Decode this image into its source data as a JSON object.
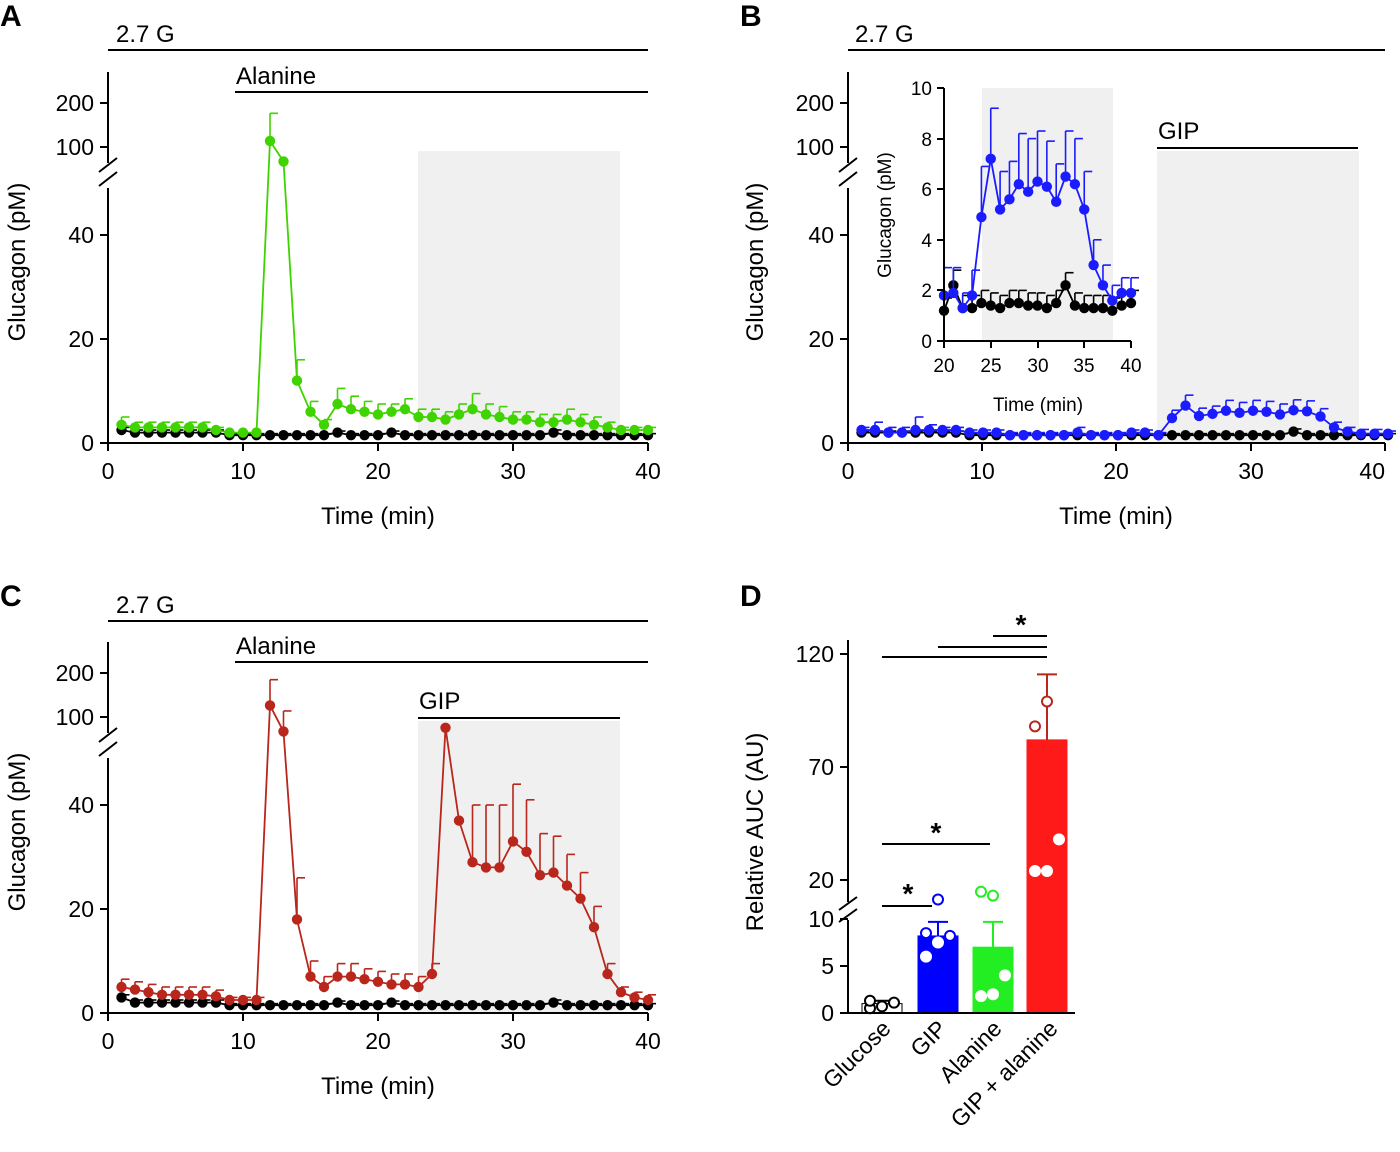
{
  "chart_data": [
    {
      "panel": "A",
      "type": "line",
      "title": "",
      "xlabel": "Time (min)",
      "ylabel": "Glucagon (pM)",
      "xlim": [
        0,
        40
      ],
      "xticks": [
        "0",
        "10",
        "20",
        "30",
        "40"
      ],
      "ylim_lower": [
        0,
        50
      ],
      "yticks_lower": [
        "0",
        "20",
        "40"
      ],
      "yticks_upper": [
        "100",
        "200"
      ],
      "condition_bars": [
        {
          "label": "2.7 G",
          "start": 0,
          "end": 40
        },
        {
          "label": "Alanine",
          "start": 9,
          "end": 40
        }
      ],
      "shaded_region": [
        23,
        38
      ],
      "series": [
        {
          "name": "Alanine",
          "color": "#3fd300",
          "x": [
            1,
            2,
            3,
            4,
            5,
            6,
            7,
            8,
            9,
            10,
            11,
            12,
            13,
            14,
            15,
            16,
            17,
            18,
            19,
            20,
            21,
            22,
            23,
            24,
            25,
            26,
            27,
            28,
            29,
            30,
            31,
            32,
            33,
            34,
            35,
            36,
            37,
            38,
            39,
            40
          ],
          "y": [
            3.5,
            3,
            3,
            3,
            3,
            3,
            3,
            2.5,
            2,
            2,
            2,
            110,
            80,
            12,
            6,
            3.5,
            7.5,
            6.5,
            6,
            5.5,
            6,
            6.5,
            5,
            5,
            4.5,
            5.5,
            6.5,
            5.5,
            5,
            4.5,
            4.5,
            4,
            4,
            4.5,
            4,
            3.5,
            3,
            2.5,
            2.5,
            2.5
          ],
          "err": [
            1.5,
            1,
            1,
            1,
            1,
            1,
            1,
            0.5,
            0,
            0,
            0,
            60,
            0,
            4,
            2,
            1,
            3,
            2.5,
            2,
            2,
            1.5,
            2,
            1.5,
            1.5,
            1.5,
            2,
            3,
            2,
            2,
            1.5,
            1.5,
            1.5,
            1.5,
            2,
            1.5,
            1.5,
            1,
            0.5,
            0.5,
            0.5
          ]
        },
        {
          "name": "Glucose",
          "color": "#000000",
          "x": [
            1,
            2,
            3,
            4,
            5,
            6,
            7,
            8,
            9,
            10,
            11,
            12,
            13,
            14,
            15,
            16,
            17,
            18,
            19,
            20,
            21,
            22,
            23,
            24,
            25,
            26,
            27,
            28,
            29,
            30,
            31,
            32,
            33,
            34,
            35,
            36,
            37,
            38,
            39,
            40
          ],
          "y": [
            2.5,
            2,
            2,
            2,
            2,
            2,
            2,
            2,
            1.5,
            1.5,
            1.5,
            1.5,
            1.5,
            1.5,
            1.5,
            1.5,
            2,
            1.5,
            1.5,
            1.5,
            2,
            1.5,
            1.5,
            1.5,
            1.5,
            1.5,
            1.5,
            1.5,
            1.5,
            1.5,
            1.5,
            1.5,
            2,
            1.5,
            1.5,
            1.5,
            1.5,
            1.5,
            1.5,
            1.5
          ],
          "err": [
            0.5,
            0.5,
            0.5,
            0.5,
            0.5,
            0.5,
            0.5,
            0.5,
            0.3,
            0.3,
            0.3,
            0.3,
            0.3,
            0.3,
            0.3,
            0.3,
            0.3,
            0.3,
            0.3,
            0.3,
            0.3,
            0.3,
            0.3,
            0.3,
            0.3,
            0.3,
            0.3,
            0.3,
            0.3,
            0.3,
            0.3,
            0.3,
            0.5,
            0.3,
            0.3,
            0.3,
            0.3,
            0.3,
            0.3,
            0.3
          ]
        }
      ]
    },
    {
      "panel": "B",
      "type": "line",
      "title": "",
      "xlabel": "Time (min)",
      "ylabel": "Glucagon (pM)",
      "xlim": [
        0,
        40
      ],
      "xticks": [
        "0",
        "10",
        "20",
        "30",
        "40"
      ],
      "ylim_lower": [
        0,
        50
      ],
      "yticks_lower": [
        "0",
        "20",
        "40"
      ],
      "yticks_upper": [
        "100",
        "200"
      ],
      "condition_bars": [
        {
          "label": "2.7 G",
          "start": 0,
          "end": 40
        },
        {
          "label": "GIP",
          "start": 23,
          "end": 38
        }
      ],
      "shaded_region": [
        23,
        38
      ],
      "series": [
        {
          "name": "GIP",
          "color": "#1b1bff",
          "x": [
            1,
            2,
            3,
            4,
            5,
            6,
            7,
            8,
            9,
            10,
            11,
            12,
            13,
            14,
            15,
            16,
            17,
            18,
            19,
            20,
            21,
            22,
            23,
            24,
            25,
            26,
            27,
            28,
            29,
            30,
            31,
            32,
            33,
            34,
            35,
            36,
            37,
            38,
            39,
            40
          ],
          "y": [
            2.5,
            2.5,
            2,
            2,
            2.5,
            2.5,
            2.5,
            2.5,
            2,
            2,
            2,
            1.5,
            1.5,
            1.5,
            1.5,
            1.5,
            2,
            1.5,
            1.5,
            1.5,
            2,
            2,
            1.5,
            4.8,
            7.2,
            5.2,
            5.6,
            6.2,
            5.8,
            6.2,
            6,
            5.5,
            6.3,
            6.1,
            5.1,
            3,
            2.2,
            1.8,
            1.8,
            1.8
          ],
          "err": [
            0.5,
            1.5,
            1,
            1,
            2.5,
            1,
            0.5,
            0.5,
            0.5,
            0.5,
            0.5,
            0.5,
            0.5,
            0.5,
            0.5,
            0.5,
            1,
            0.5,
            0.5,
            0.5,
            0.5,
            0.5,
            0.5,
            1.5,
            2,
            1.5,
            1.5,
            2,
            2,
            2,
            2,
            2,
            2,
            2,
            1.5,
            1,
            0.8,
            0.8,
            0.8,
            0.5
          ]
        },
        {
          "name": "Glucose",
          "color": "#000000",
          "x": [
            1,
            2,
            3,
            4,
            5,
            6,
            7,
            8,
            9,
            10,
            11,
            12,
            13,
            14,
            15,
            16,
            17,
            18,
            19,
            20,
            21,
            22,
            23,
            24,
            25,
            26,
            27,
            28,
            29,
            30,
            31,
            32,
            33,
            34,
            35,
            36,
            37,
            38,
            39,
            40
          ],
          "y": [
            2,
            2,
            2,
            2,
            2,
            2,
            2,
            2,
            1.5,
            1.5,
            1.5,
            1.5,
            1.5,
            1.5,
            1.5,
            1.5,
            1.5,
            1.5,
            1.5,
            1.5,
            1.5,
            1.5,
            1.5,
            1.5,
            1.5,
            1.5,
            1.5,
            1.5,
            1.5,
            1.5,
            1.5,
            1.5,
            2.2,
            1.5,
            1.5,
            1.5,
            1.5,
            1.5,
            1.5,
            1.5
          ],
          "err": [
            0.3,
            0.3,
            0.3,
            0.3,
            0.3,
            0.3,
            0.3,
            0.3,
            0.3,
            0.3,
            0.3,
            0.3,
            0.3,
            0.3,
            0.3,
            0.3,
            0.3,
            0.3,
            0.3,
            0.3,
            0.3,
            0.3,
            0.3,
            0.3,
            0.3,
            0.3,
            0.3,
            0.3,
            0.3,
            0.3,
            0.3,
            0.3,
            0.5,
            0.3,
            0.3,
            0.3,
            0.3,
            0.3,
            0.3,
            0.3
          ]
        }
      ],
      "inset": {
        "xlabel": "Time (min)",
        "ylabel": "Glucagon (pM)",
        "xlim": [
          20,
          40
        ],
        "ylim": [
          0,
          10
        ],
        "xticks": [
          "20",
          "25",
          "30",
          "35",
          "40"
        ],
        "yticks": [
          "0",
          "2",
          "4",
          "6",
          "8",
          "10"
        ],
        "shaded_region": [
          24,
          38
        ],
        "series": [
          {
            "name": "GIP",
            "color": "#1b1bff",
            "x": [
              20,
              21,
              22,
              23,
              24,
              25,
              26,
              27,
              28,
              29,
              30,
              31,
              32,
              33,
              34,
              35,
              36,
              37,
              38,
              39,
              40
            ],
            "y": [
              1.8,
              1.9,
              1.3,
              1.8,
              4.9,
              7.2,
              5.2,
              5.6,
              6.2,
              5.9,
              6.3,
              6.1,
              5.5,
              6.5,
              6.2,
              5.2,
              3.0,
              2.2,
              1.6,
              1.9,
              1.9
            ],
            "err": [
              1.1,
              1,
              0.6,
              1,
              2,
              2,
              1.5,
              1.5,
              2,
              2.1,
              2,
              1.8,
              1.5,
              1.8,
              1.8,
              1.5,
              1,
              0.8,
              0.6,
              0.6,
              0.6
            ]
          },
          {
            "name": "Glucose",
            "color": "#000000",
            "x": [
              20,
              21,
              22,
              23,
              24,
              25,
              26,
              27,
              28,
              29,
              30,
              31,
              32,
              33,
              34,
              35,
              36,
              37,
              38,
              39,
              40
            ],
            "y": [
              1.2,
              2.2,
              1.3,
              1.3,
              1.5,
              1.4,
              1.3,
              1.5,
              1.5,
              1.4,
              1.4,
              1.3,
              1.5,
              2.2,
              1.4,
              1.3,
              1.3,
              1.3,
              1.2,
              1.4,
              1.5
            ],
            "err": [
              0.5,
              0.6,
              0.5,
              0.5,
              0.5,
              0.5,
              0.5,
              0.5,
              0.5,
              0.5,
              0.5,
              0.5,
              0.5,
              0.5,
              0.5,
              0.5,
              0.5,
              0.5,
              0.5,
              0.5,
              0.5
            ]
          }
        ]
      }
    },
    {
      "panel": "C",
      "type": "line",
      "title": "",
      "xlabel": "Time (min)",
      "ylabel": "Glucagon (pM)",
      "xlim": [
        0,
        40
      ],
      "xticks": [
        "0",
        "10",
        "20",
        "30",
        "40"
      ],
      "ylim_lower": [
        0,
        50
      ],
      "yticks_lower": [
        "0",
        "20",
        "40"
      ],
      "yticks_upper": [
        "100",
        "200"
      ],
      "condition_bars": [
        {
          "label": "2.7 G",
          "start": 0,
          "end": 40
        },
        {
          "label": "Alanine",
          "start": 9,
          "end": 40
        },
        {
          "label": "GIP",
          "start": 23,
          "end": 38
        }
      ],
      "shaded_region": [
        23,
        38
      ],
      "series": [
        {
          "name": "GIP + alanine",
          "color": "#b8261c",
          "x": [
            1,
            2,
            3,
            4,
            5,
            6,
            7,
            8,
            9,
            10,
            11,
            12,
            13,
            14,
            15,
            16,
            17,
            18,
            19,
            20,
            21,
            22,
            23,
            24,
            25,
            26,
            27,
            28,
            29,
            30,
            31,
            32,
            33,
            34,
            35,
            36,
            37,
            38,
            39,
            40
          ],
          "y": [
            5,
            4.5,
            4,
            3.5,
            3.5,
            3.5,
            3.5,
            3.2,
            2.5,
            2.5,
            2.5,
            120,
            80,
            18,
            7,
            5,
            7,
            7,
            6.5,
            6,
            5.5,
            5.5,
            5,
            7.5,
            85,
            37,
            29,
            28,
            28,
            33,
            31,
            26.5,
            27,
            24.5,
            22,
            16.5,
            7.5,
            4,
            3,
            2.5
          ],
          "err": [
            1.5,
            1.5,
            1.5,
            1.5,
            1.5,
            1.5,
            1.5,
            1.2,
            0.5,
            0.5,
            0.5,
            60,
            30,
            8,
            3,
            2,
            2.5,
            2.5,
            2,
            2,
            2,
            2,
            2,
            2,
            0,
            0,
            11,
            12,
            12,
            11,
            10,
            8,
            7,
            6,
            5,
            4,
            2,
            1,
            1,
            1
          ]
        },
        {
          "name": "Glucose",
          "color": "#000000",
          "x": [
            1,
            2,
            3,
            4,
            5,
            6,
            7,
            8,
            9,
            10,
            11,
            12,
            13,
            14,
            15,
            16,
            17,
            18,
            19,
            20,
            21,
            22,
            23,
            24,
            25,
            26,
            27,
            28,
            29,
            30,
            31,
            32,
            33,
            34,
            35,
            36,
            37,
            38,
            39,
            40
          ],
          "y": [
            3,
            2,
            2,
            2,
            2,
            2,
            2,
            2,
            1.5,
            1.5,
            1.5,
            1.5,
            1.5,
            1.5,
            1.5,
            1.5,
            2,
            1.5,
            1.5,
            1.5,
            2,
            1.5,
            1.5,
            1.5,
            1.5,
            1.5,
            1.5,
            1.5,
            1.5,
            1.5,
            1.5,
            1.5,
            2,
            1.5,
            1.5,
            1.5,
            1.5,
            1.5,
            1.5,
            1.5
          ],
          "err": [
            0.5,
            0.5,
            0.5,
            0.5,
            0.5,
            0.5,
            0.5,
            0.5,
            0.3,
            0.3,
            0.3,
            0.3,
            0.3,
            0.3,
            0.3,
            0.3,
            0.3,
            0.3,
            0.3,
            0.3,
            0.3,
            0.3,
            0.3,
            0.3,
            0.3,
            0.3,
            0.3,
            0.3,
            0.3,
            0.3,
            0.3,
            0.3,
            0.5,
            0.3,
            0.3,
            0.3,
            0.3,
            0.3,
            0.3,
            0.3
          ]
        }
      ]
    },
    {
      "panel": "D",
      "type": "bar",
      "title": "",
      "xlabel": "",
      "ylabel": "Relative AUC (AU)",
      "categories": [
        "Glucose",
        "GIP",
        "Alanine",
        "GIP + alanine"
      ],
      "values": [
        1,
        8.2,
        7,
        82
      ],
      "err": [
        0.3,
        1.5,
        2.7,
        29
      ],
      "colors": [
        "#ffffff",
        "#0000ff",
        "#22ee22",
        "#ff1a1a"
      ],
      "points": [
        [
          0.5,
          0.7,
          1.1,
          1.3
        ],
        [
          6,
          7.5,
          8.2,
          8.5,
          15
        ],
        [
          1.8,
          2,
          4,
          17,
          16
        ],
        [
          24,
          24,
          38,
          88,
          99
        ]
      ],
      "yticks_lower": [
        "0",
        "5",
        "10"
      ],
      "yticks_upper": [
        "20",
        "70",
        "120"
      ],
      "significance": [
        {
          "from": "Glucose",
          "to": "GIP",
          "label": "*"
        },
        {
          "from": "Glucose",
          "to": "Alanine",
          "label": "*"
        },
        {
          "from": "Glucose",
          "to": "GIP + alanine",
          "label": ""
        },
        {
          "from": "GIP",
          "to": "GIP + alanine",
          "label": ""
        },
        {
          "from": "Alanine",
          "to": "GIP + alanine",
          "label": "*"
        }
      ]
    }
  ]
}
